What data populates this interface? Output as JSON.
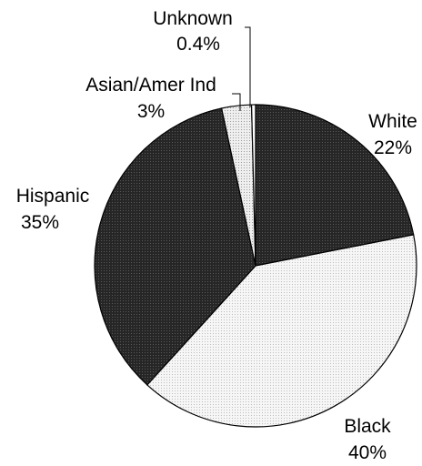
{
  "chart_data": {
    "type": "pie",
    "title": "",
    "start": "12 o'clock",
    "direction": "clockwise",
    "slices": [
      {
        "label": "White",
        "percent_label": "22%",
        "value": 22,
        "fill": "#2b2b2b"
      },
      {
        "label": "Black",
        "percent_label": "40%",
        "value": 40,
        "fill": "#f0f0f0"
      },
      {
        "label": "Hispanic",
        "percent_label": "35%",
        "value": 35,
        "fill": "#2b2b2b"
      },
      {
        "label": "Asian/Amer Ind",
        "percent_label": "3%",
        "value": 3,
        "fill": "#e6e6e6"
      },
      {
        "label": "Unknown",
        "percent_label": "0.4%",
        "value": 0.4,
        "fill": "#ffffff"
      }
    ],
    "legend": "none",
    "grid": false
  }
}
